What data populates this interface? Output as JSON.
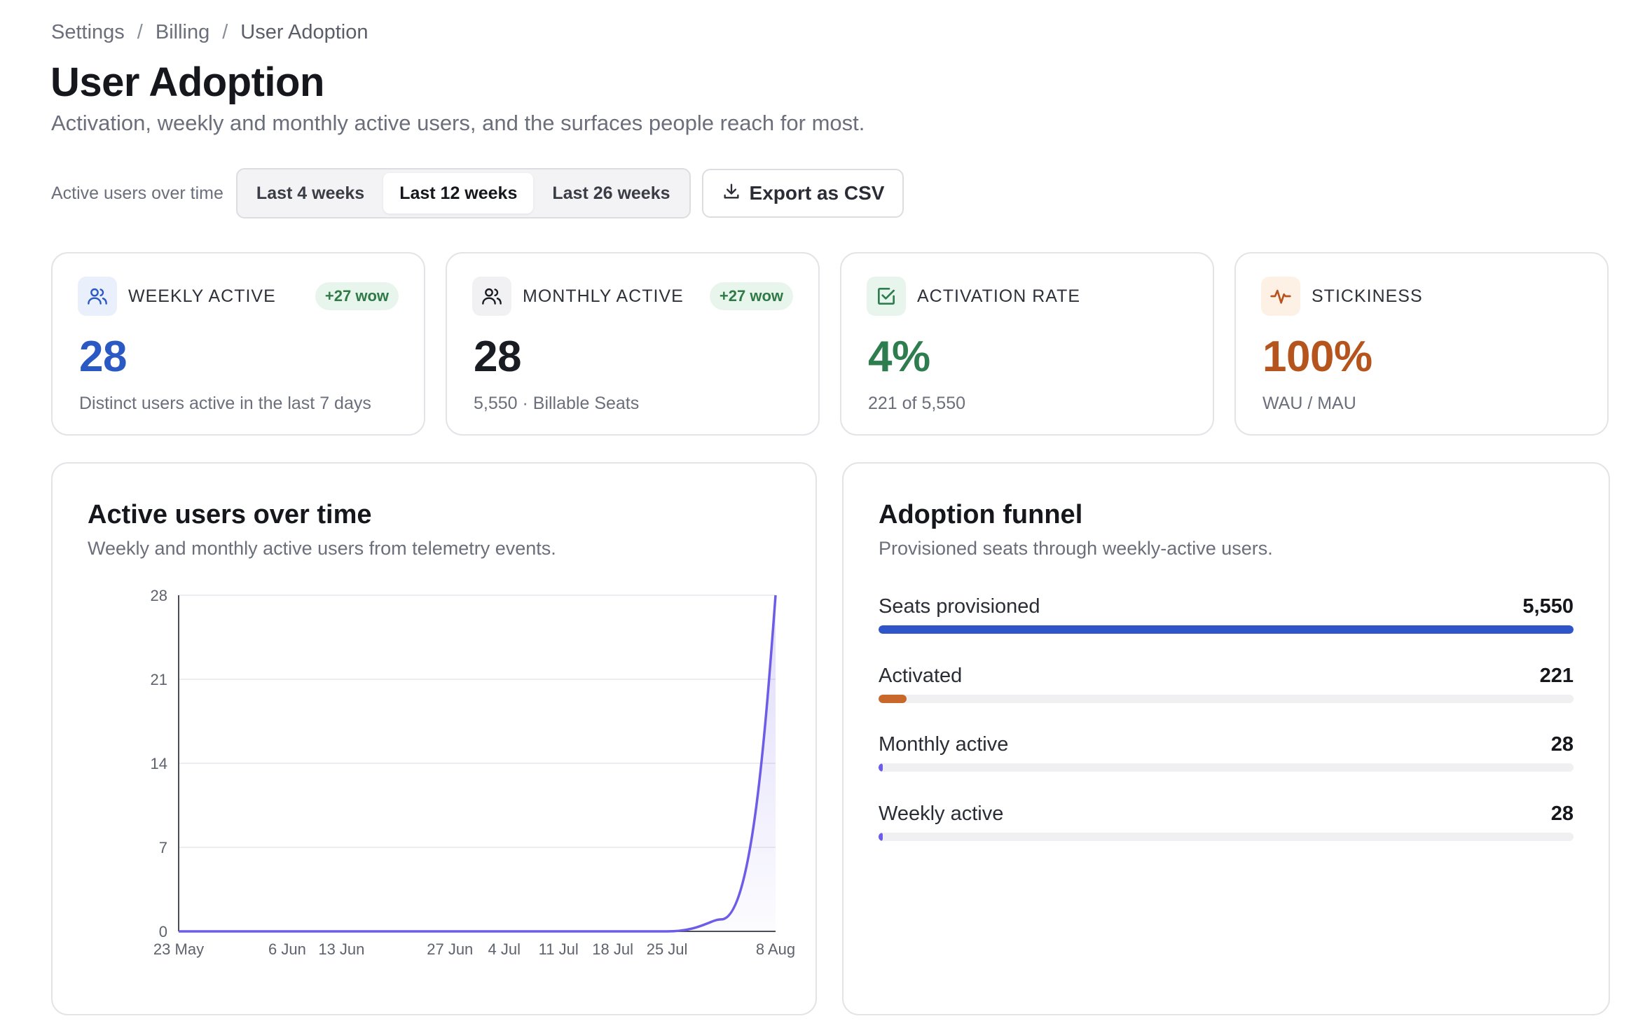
{
  "breadcrumb": {
    "items": [
      "Settings",
      "Billing",
      "User Adoption"
    ],
    "separator": "/"
  },
  "page": {
    "title": "User Adoption",
    "subtitle": "Activation, weekly and monthly active users, and the surfaces people reach for most."
  },
  "toolbar": {
    "label": "Active users over time",
    "ranges": [
      "Last 4 weeks",
      "Last 12 weeks",
      "Last 26 weeks"
    ],
    "selected_range": "Last 12 weeks",
    "export_label": "Export as CSV"
  },
  "kpis": [
    {
      "label": "WEEKLY ACTIVE",
      "badge": "+27 wow",
      "value": "28",
      "sub": "Distinct users active in the last 7 days",
      "icon": "users-icon",
      "color": "#2b59c3",
      "icon_bg": "#eaf0fb"
    },
    {
      "label": "MONTHLY ACTIVE",
      "badge": "+27 wow",
      "value": "28",
      "sub": "5,550 · Billable Seats",
      "icon": "users-icon",
      "color": "#1a1c23",
      "icon_bg": "#f1f1f3"
    },
    {
      "label": "ACTIVATION RATE",
      "badge": "",
      "value": "4%",
      "sub": "221 of 5,550",
      "icon": "check-square-icon",
      "color": "#2e7d4f",
      "icon_bg": "#e8f5ec"
    },
    {
      "label": "STICKINESS",
      "badge": "",
      "value": "100%",
      "sub": "WAU / MAU",
      "icon": "activity-icon",
      "color": "#b5541c",
      "icon_bg": "#fdf1e6"
    }
  ],
  "chart_panel": {
    "title": "Active users over time",
    "subtitle": "Weekly and monthly active users from telemetry events."
  },
  "chart_data": {
    "type": "line",
    "x": [
      "2025-05-23",
      "2025-05-30",
      "2025-06-06",
      "2025-06-13",
      "2025-06-20",
      "2025-06-27",
      "2025-07-04",
      "2025-07-11",
      "2025-07-18",
      "2025-07-25",
      "2025-08-01",
      "2025-08-08"
    ],
    "x_tick_labels": [
      {
        "x": "2025-05-23",
        "label": "23 May"
      },
      {
        "x": "2025-06-06",
        "label": "6 Jun"
      },
      {
        "x": "2025-06-13",
        "label": "13 Jun"
      },
      {
        "x": "2025-06-27",
        "label": "27 Jun"
      },
      {
        "x": "2025-07-04",
        "label": "4 Jul"
      },
      {
        "x": "2025-07-11",
        "label": "11 Jul"
      },
      {
        "x": "2025-07-18",
        "label": "18 Jul"
      },
      {
        "x": "2025-07-25",
        "label": "25 Jul"
      },
      {
        "x": "2025-08-08",
        "label": "8 Aug"
      }
    ],
    "series": [
      {
        "values": [
          0,
          0,
          0,
          0,
          0,
          0,
          0,
          0,
          0,
          0,
          1,
          28
        ],
        "color": "#6c5ce7"
      }
    ],
    "yticks": [
      0,
      7,
      14,
      21,
      28
    ],
    "ylim": [
      0,
      28
    ],
    "grid": true,
    "xlabel": "",
    "ylabel": ""
  },
  "funnel_panel": {
    "title": "Adoption funnel",
    "subtitle": "Provisioned seats through weekly-active users.",
    "max": 5550,
    "rows": [
      {
        "label": "Seats provisioned",
        "value": 5550,
        "display": "5,550",
        "color": "#2f55c8"
      },
      {
        "label": "Activated",
        "value": 221,
        "display": "221",
        "color": "#c8682b"
      },
      {
        "label": "Monthly active",
        "value": 28,
        "display": "28",
        "color": "#6c5ce7"
      },
      {
        "label": "Weekly active",
        "value": 28,
        "display": "28",
        "color": "#6c5ce7"
      }
    ]
  }
}
